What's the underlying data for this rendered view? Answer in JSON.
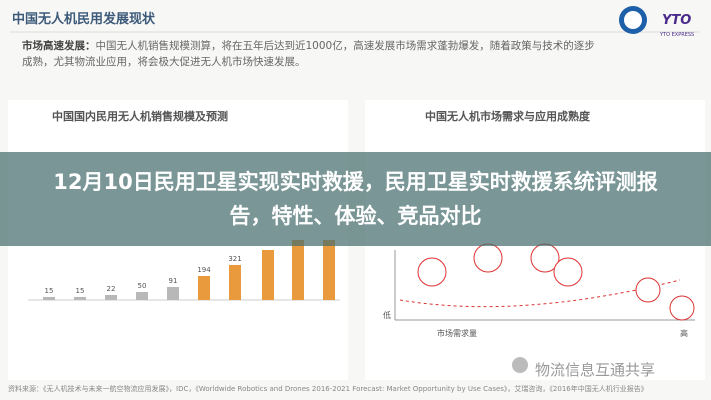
{
  "header": {
    "title": "中国无人机民用发展现状",
    "logo_text": "YTO",
    "logo_subtext": "YTO EXPRESS"
  },
  "intro": {
    "label": "市场高速发展：",
    "text": "中国无人机销售规模测算，将在五年后达到近1000亿，高速发展市场需求蓬勃爆发，随着政策与技术的逐步成熟，尤其物流业应用，将会极大促进无人机市场快速发展。"
  },
  "left_chart": {
    "title": "中国国内民用无人机销售规模及预测",
    "bar_labels": [
      "15",
      "15",
      "22",
      "50",
      "91",
      "194",
      "321"
    ]
  },
  "right_chart": {
    "title": "中国无人机市场需求与应用成熟度",
    "y_low": "低",
    "x_label": "市场需求量",
    "x_high": "高"
  },
  "banner": {
    "title": "12月10日民用卫星实现实时救援，民用卫星实时救援系统评测报告，特性、体验、竞品对比"
  },
  "watermark": "物流信息互通共享",
  "footer": {
    "source": "资料来源：《无人机技术与未来一航空物流应用发展》，IDC，《Worldwide Robotics and Drones 2016-2021 Forecast: Market Opportunity by Use Cases》，艾瑞咨询，《2016年中国无人机行业报告》"
  }
}
